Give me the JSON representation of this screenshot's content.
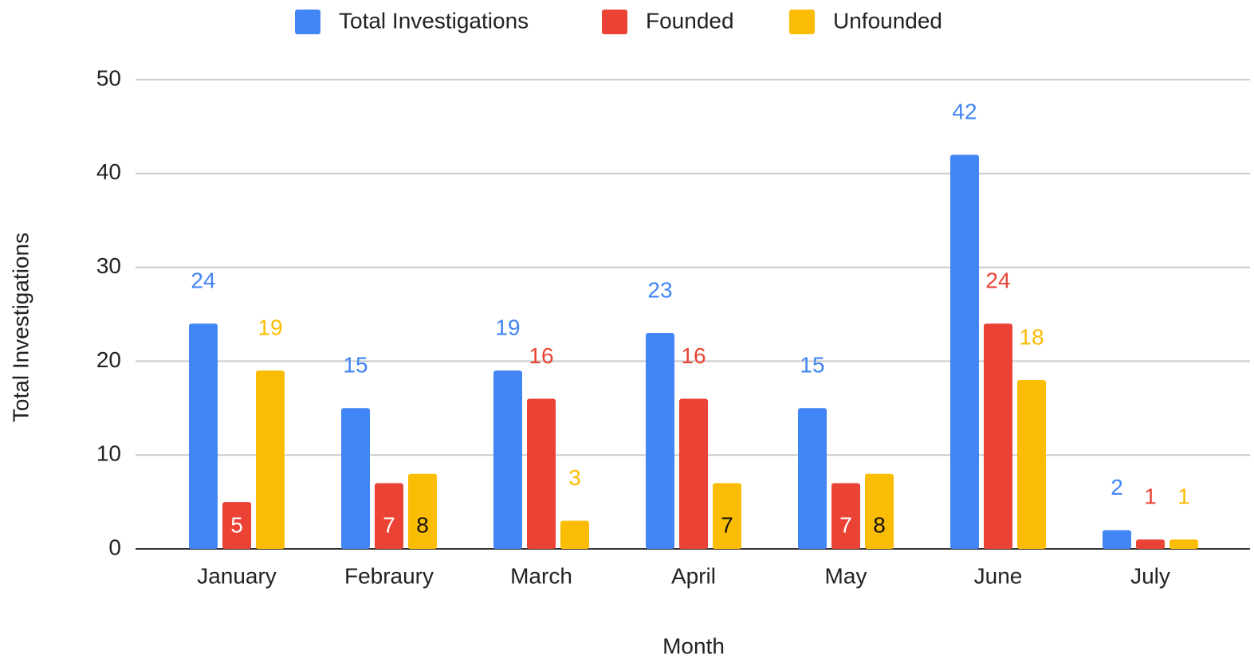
{
  "chart_data": {
    "type": "bar",
    "x_label": "Month",
    "y_label": "Total Investigations",
    "categories": [
      "January",
      "Febraury",
      "March",
      "April",
      "May",
      "June",
      "July"
    ],
    "series": [
      {
        "name": "Total Investigations",
        "color": "#4285f4",
        "values": [
          24,
          15,
          19,
          23,
          15,
          42,
          2
        ]
      },
      {
        "name": "Founded",
        "color": "#ea4335",
        "values": [
          5,
          7,
          16,
          16,
          7,
          24,
          1
        ]
      },
      {
        "name": "Unfounded",
        "color": "#fbbc04",
        "values": [
          19,
          8,
          3,
          7,
          8,
          18,
          1
        ]
      }
    ],
    "ylim": [
      0,
      50
    ],
    "yticks": [
      0,
      10,
      20,
      30,
      40,
      50
    ],
    "grid": true,
    "legend": "top"
  }
}
